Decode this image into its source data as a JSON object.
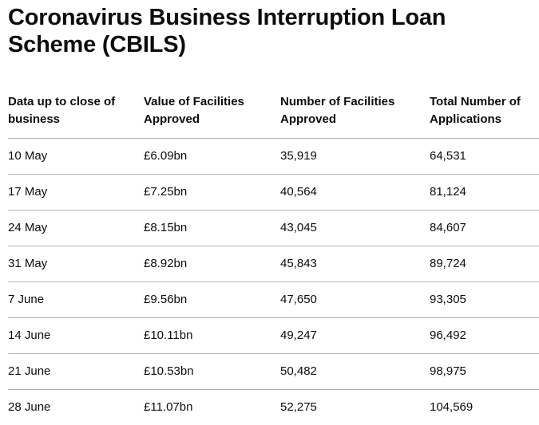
{
  "page": {
    "title": "Coronavirus Business Interruption Loan Scheme (CBILS)"
  },
  "table": {
    "headers": [
      "Data up to close of business",
      "Value of Facilities Approved",
      "Number of Facilities Approved",
      "Total Number of Applications"
    ],
    "rows": [
      [
        "10 May",
        "£6.09bn",
        "35,919",
        "64,531"
      ],
      [
        "17 May",
        "£7.25bn",
        "40,564",
        "81,124"
      ],
      [
        "24 May",
        "£8.15bn",
        "43,045",
        "84,607"
      ],
      [
        "31 May",
        "£8.92bn",
        "45,843",
        "89,724"
      ],
      [
        "7 June",
        "£9.56bn",
        "47,650",
        "93,305"
      ],
      [
        "14 June",
        "£10.11bn",
        "49,247",
        "96,492"
      ],
      [
        "21 June",
        "£10.53bn",
        "50,482",
        "98,975"
      ],
      [
        "28 June",
        "£11.07bn",
        "52,275",
        "104,569"
      ]
    ]
  }
}
